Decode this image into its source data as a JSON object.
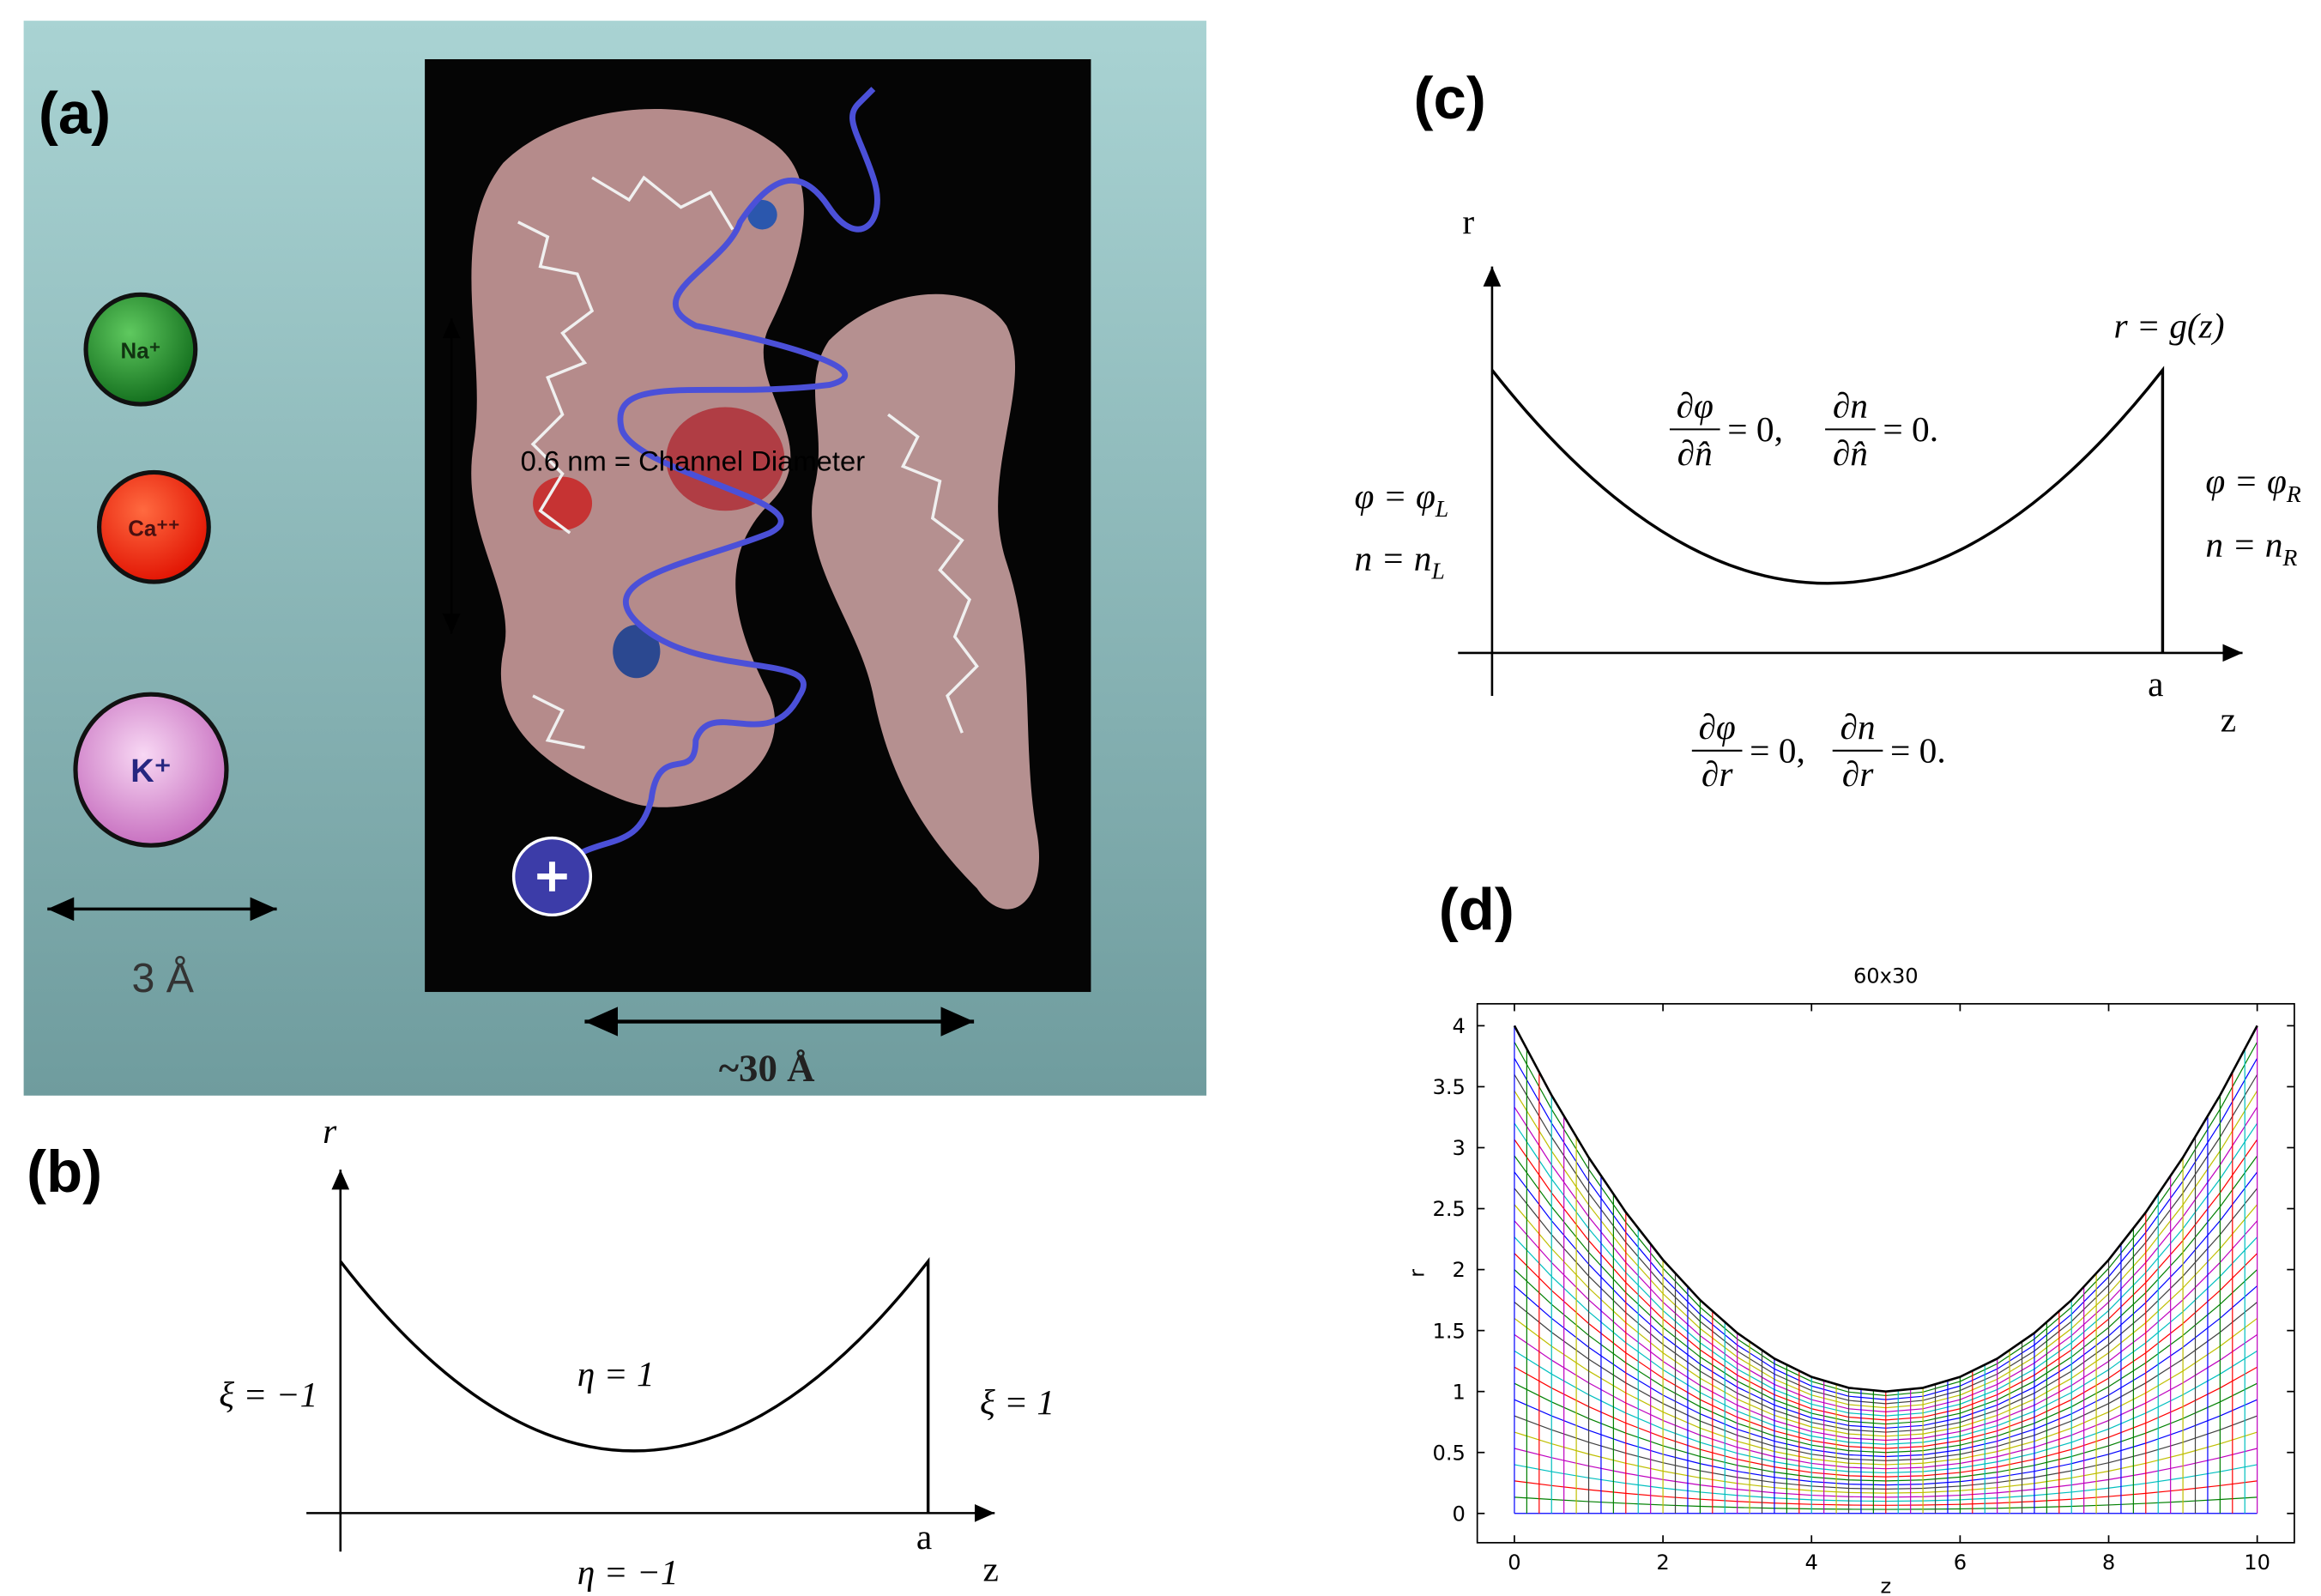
{
  "panel_a": {
    "label": "(a)",
    "ions": [
      "Na⁺",
      "Ca⁺⁺",
      "K⁺"
    ],
    "scale_small": "3 Å",
    "channel_diameter": "0.6 nm = Channel Diameter",
    "scale_large": "~30 Å"
  },
  "panel_b": {
    "label": "(b)",
    "r_axis": "r",
    "z_axis": "z",
    "end_label": "a",
    "left": "ξ = −1",
    "top": "η = 1",
    "right": "ξ = 1",
    "bottom": "η = −1"
  },
  "panel_c": {
    "label": "(c)",
    "r_axis": "r",
    "z_axis": "z",
    "end_label": "a",
    "boundary": "r = g(z)",
    "top_condition": [
      {
        "num": "∂φ",
        "den": "∂n̂",
        "rhs": "= 0,"
      },
      {
        "num": "∂n",
        "den": "∂n̂",
        "rhs": "= 0."
      }
    ],
    "bottom_condition": [
      {
        "num": "∂φ",
        "den": "∂r",
        "rhs": "= 0,"
      },
      {
        "num": "∂n",
        "den": "∂r",
        "rhs": "= 0."
      }
    ],
    "left_condition": [
      {
        "text": "φ = φ",
        "sub": "L"
      },
      {
        "text": "n = n",
        "sub": "L"
      }
    ],
    "right_condition": [
      {
        "text": "φ = φ",
        "sub": "R"
      },
      {
        "text": "n = n",
        "sub": "R"
      }
    ]
  },
  "panel_d": {
    "label": "(d)"
  },
  "chart_data": {
    "type": "line",
    "title": "60x30",
    "x_label": "z",
    "y_label": "r",
    "x": [
      0,
      0.5,
      1,
      1.5,
      2,
      2.5,
      3,
      3.5,
      4,
      4.5,
      5,
      5.5,
      6,
      6.5,
      7,
      7.5,
      8,
      8.5,
      9,
      9.5,
      10
    ],
    "series": [
      {
        "color": "#000000",
        "values": [
          4,
          3.43,
          2.92,
          2.47,
          2.08,
          1.75,
          1.48,
          1.27,
          1.12,
          1.03,
          1,
          1.03,
          1.12,
          1.27,
          1.48,
          1.75,
          2.08,
          2.47,
          2.92,
          3.43,
          4
        ]
      }
    ],
    "xlim": [
      -0.5,
      10.5
    ],
    "ylim": [
      -0.24,
      4.18
    ],
    "xticks": [
      0,
      2,
      4,
      6,
      8,
      10
    ],
    "yticks": [
      0,
      0.5,
      1,
      1.5,
      2,
      2.5,
      3,
      3.5,
      4
    ]
  }
}
